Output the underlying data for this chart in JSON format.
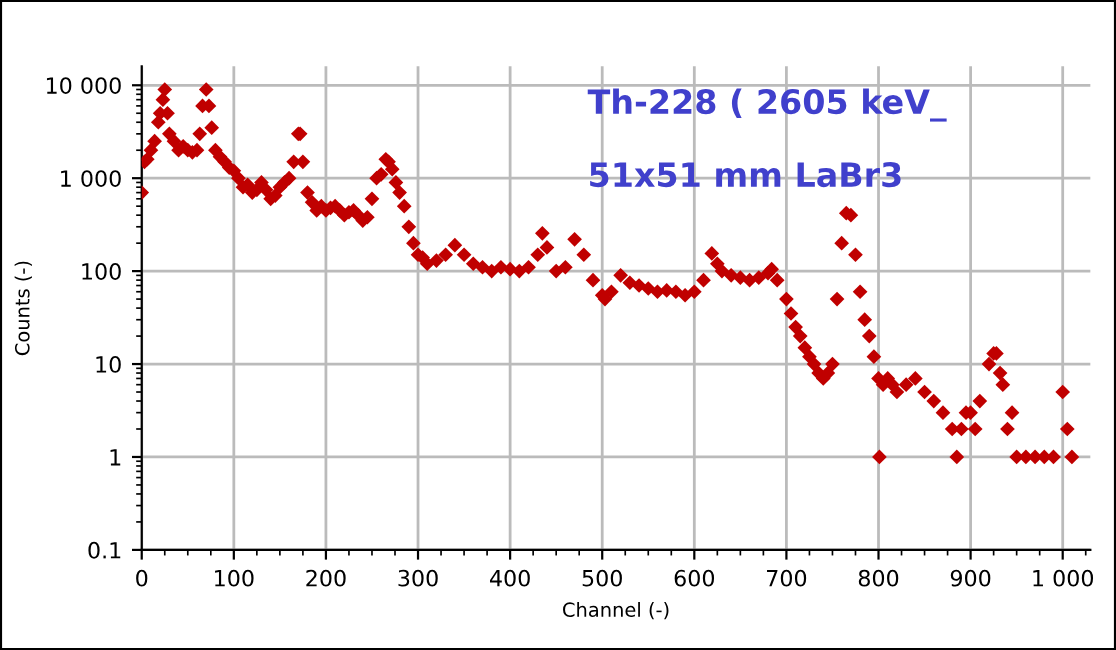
{
  "chart_data": {
    "type": "scatter",
    "xlabel": "Channel (-)",
    "ylabel": "Counts (-)",
    "annotations": [
      "Th-228 ( 2605 keV_",
      "51x51 mm LaBr3"
    ],
    "log": "y",
    "grid": true,
    "marker": "diamond",
    "xlim": [
      0,
      1030
    ],
    "ylim": [
      0.1,
      16000
    ],
    "xticks": [
      0,
      100,
      200,
      300,
      400,
      500,
      600,
      700,
      800,
      900,
      {
        "value": 1000,
        "label": "1 000"
      }
    ],
    "yticks": [
      0.1,
      1,
      10,
      100,
      {
        "value": 1000,
        "label": "1 000"
      },
      {
        "value": 10000,
        "label": "10 000"
      }
    ],
    "series": [
      {
        "color": "#c00000",
        "x": [
          0,
          3,
          6,
          10,
          14,
          18,
          20,
          23,
          25,
          28,
          30,
          35,
          40,
          45,
          50,
          55,
          60,
          63,
          66,
          70,
          73,
          76,
          80,
          85,
          90,
          95,
          100,
          105,
          110,
          115,
          120,
          125,
          130,
          135,
          140,
          145,
          150,
          155,
          160,
          165,
          170,
          172,
          175,
          180,
          185,
          190,
          195,
          200,
          205,
          210,
          215,
          220,
          225,
          230,
          235,
          240,
          245,
          250,
          255,
          260,
          265,
          268,
          272,
          276,
          280,
          285,
          290,
          295,
          300,
          305,
          310,
          320,
          330,
          340,
          350,
          360,
          370,
          380,
          390,
          400,
          410,
          420,
          430,
          435,
          440,
          450,
          460,
          470,
          480,
          490,
          500,
          503,
          510,
          520,
          530,
          540,
          550,
          560,
          570,
          580,
          590,
          600,
          610,
          619,
          625,
          630,
          640,
          650,
          660,
          670,
          680,
          684,
          690,
          700,
          705,
          710,
          715,
          720,
          725,
          730,
          735,
          740,
          745,
          750,
          755,
          760,
          765,
          770,
          775,
          780,
          785,
          790,
          795,
          800,
          801,
          805,
          810,
          815,
          820,
          830,
          840,
          850,
          860,
          870,
          880,
          885,
          890,
          895,
          900,
          905,
          910,
          920,
          925,
          928,
          932,
          935,
          940,
          945,
          950,
          960,
          970,
          980,
          990,
          1000,
          1005,
          1010
        ],
        "values": [
          700,
          1500,
          1600,
          2000,
          2500,
          4000,
          5000,
          7000,
          9000,
          5000,
          3000,
          2500,
          2000,
          2200,
          2000,
          1900,
          2000,
          3000,
          6000,
          9000,
          6000,
          3500,
          2000,
          1700,
          1500,
          1300,
          1200,
          1000,
          800,
          850,
          700,
          750,
          900,
          750,
          600,
          650,
          800,
          900,
          1000,
          1500,
          3000,
          3000,
          1500,
          700,
          550,
          450,
          500,
          450,
          480,
          500,
          450,
          400,
          430,
          450,
          400,
          350,
          380,
          600,
          1000,
          1100,
          1600,
          1500,
          1250,
          900,
          700,
          500,
          300,
          200,
          150,
          140,
          120,
          130,
          150,
          190,
          150,
          120,
          110,
          100,
          110,
          105,
          100,
          110,
          150,
          255,
          180,
          100,
          110,
          220,
          150,
          80,
          55,
          50,
          60,
          90,
          75,
          70,
          65,
          60,
          62,
          60,
          55,
          60,
          80,
          155,
          120,
          100,
          90,
          85,
          80,
          85,
          95,
          105,
          80,
          50,
          35,
          25,
          20,
          15,
          12,
          10,
          8,
          7,
          8,
          10,
          50,
          200,
          420,
          400,
          150,
          60,
          30,
          20,
          12,
          7,
          1,
          6,
          7,
          6,
          5,
          6,
          7,
          5,
          4,
          3,
          2,
          1,
          2,
          3,
          3,
          2,
          4,
          10,
          13,
          13,
          8,
          6,
          2,
          3,
          1,
          1,
          1,
          1,
          1,
          5,
          2,
          1
        ]
      }
    ]
  }
}
